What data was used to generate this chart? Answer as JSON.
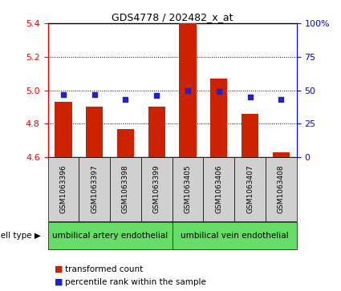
{
  "title": "GDS4778 / 202482_x_at",
  "samples": [
    "GSM1063396",
    "GSM1063397",
    "GSM1063398",
    "GSM1063399",
    "GSM1063405",
    "GSM1063406",
    "GSM1063407",
    "GSM1063408"
  ],
  "red_values": [
    4.93,
    4.9,
    4.77,
    4.9,
    5.4,
    5.07,
    4.86,
    4.63
  ],
  "blue_values": [
    47,
    47,
    43,
    46,
    50,
    49,
    45,
    43
  ],
  "ylim_left": [
    4.6,
    5.4
  ],
  "ylim_right": [
    0,
    100
  ],
  "yticks_left": [
    4.6,
    4.8,
    5.0,
    5.2,
    5.4
  ],
  "yticks_right": [
    0,
    25,
    50,
    75,
    100
  ],
  "ytick_labels_right": [
    "0",
    "25",
    "50",
    "75",
    "100%"
  ],
  "bar_color": "#cc2200",
  "dot_color": "#2222cc",
  "group1_label": "umbilical artery endothelial",
  "group2_label": "umbilical vein endothelial",
  "group1_indices": [
    0,
    1,
    2,
    3
  ],
  "group2_indices": [
    4,
    5,
    6,
    7
  ],
  "cell_type_label": "cell type",
  "legend_red": "transformed count",
  "legend_blue": "percentile rank within the sample",
  "bar_width": 0.55,
  "base_value": 4.6,
  "grey_color": "#d0d0d0",
  "green_color": "#66dd66",
  "title_fontsize": 9,
  "tick_fontsize": 8,
  "sample_fontsize": 6.5,
  "label_fontsize": 7.5,
  "legend_fontsize": 7.5
}
